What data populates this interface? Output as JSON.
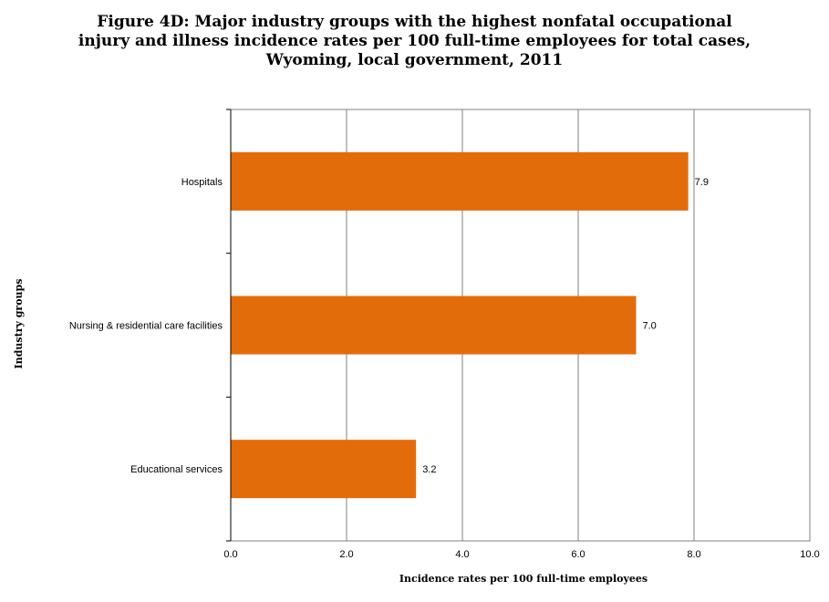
{
  "chart_data": {
    "type": "bar",
    "orientation": "horizontal",
    "title": "Figure 4D: Major industry groups with the highest nonfatal occupational injury and illness incidence rates per 100 full-time employees for total cases, Wyoming, local government, 2011",
    "xlabel": "Incidence rates per 100 full-time employees",
    "ylabel": "Industry groups",
    "categories": [
      "Hospitals",
      "Nursing & residential care facilities",
      "Educational services"
    ],
    "values": [
      7.9,
      7.0,
      3.2
    ],
    "value_labels": [
      "7.9",
      "7.0",
      "3.2"
    ],
    "xlim": [
      0,
      10
    ],
    "x_ticks": [
      "0.0",
      "2.0",
      "4.0",
      "6.0",
      "8.0",
      "10.0"
    ],
    "grid": "vertical",
    "legend": "none",
    "bar_color": "#E36C0A"
  }
}
